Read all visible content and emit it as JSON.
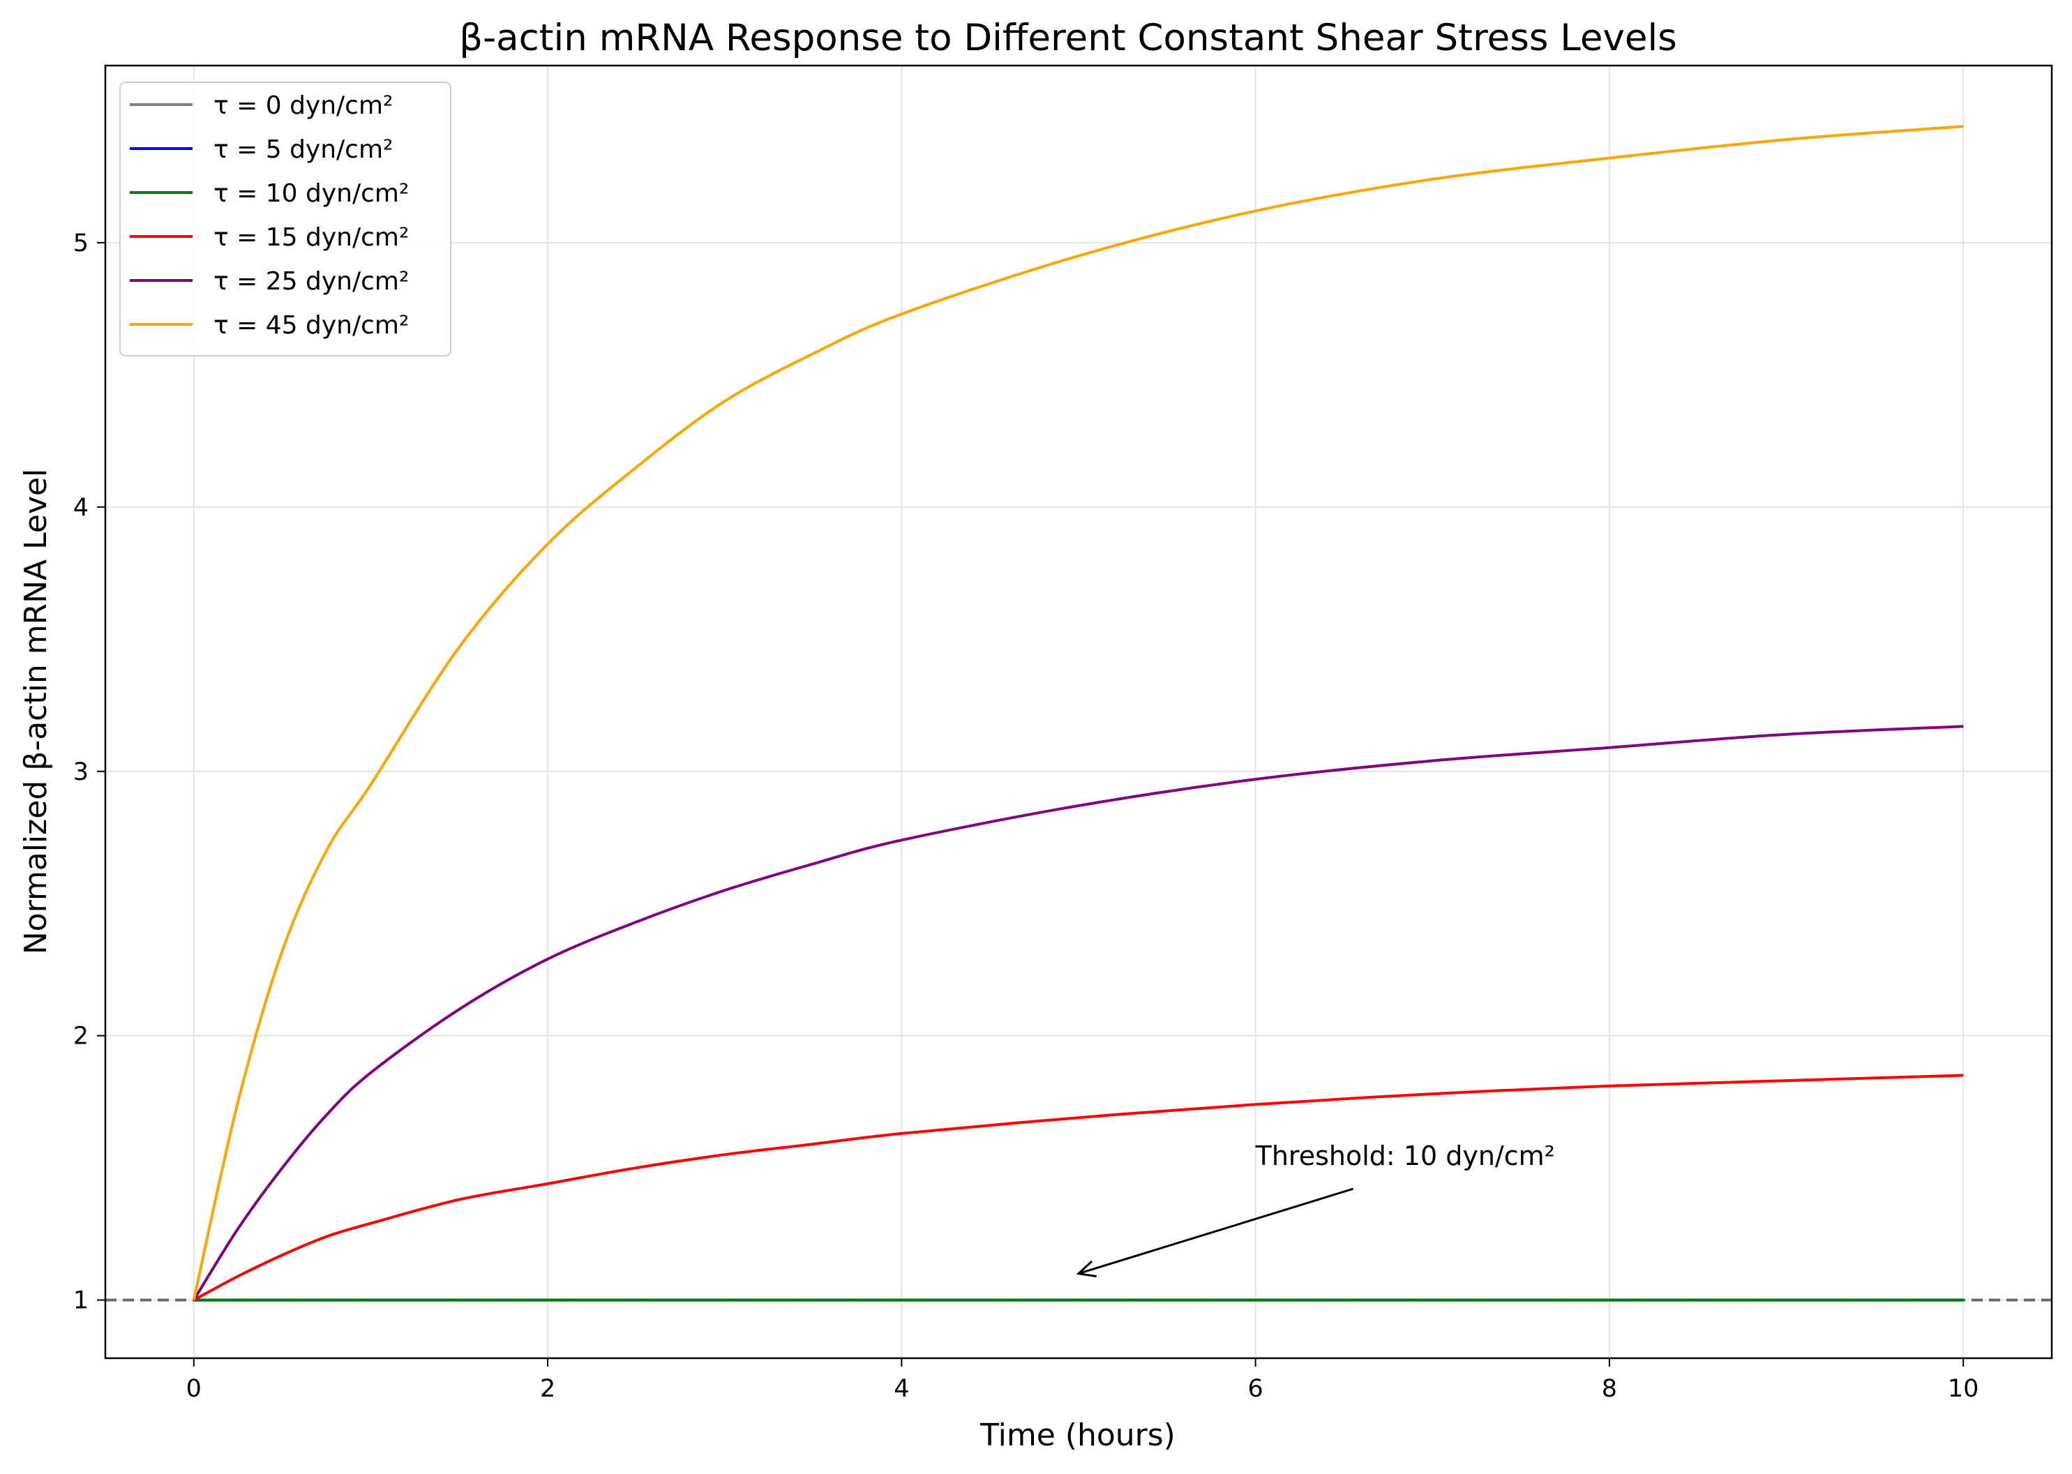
{
  "chart_data": {
    "type": "line",
    "title": "β-actin mRNA Response to Different Constant Shear Stress Levels",
    "xlabel": "Time (hours)",
    "ylabel": "Normalized β-actin mRNA Level",
    "xlim": [
      -0.5,
      10.5
    ],
    "ylim": [
      0.78,
      5.67
    ],
    "x_ticks": [
      0,
      2,
      4,
      6,
      8,
      10
    ],
    "y_ticks": [
      1,
      2,
      3,
      4,
      5
    ],
    "grid": true,
    "legend_position": "top-left",
    "x": [
      0,
      0.25,
      0.5,
      0.75,
      1,
      1.5,
      2,
      2.5,
      3,
      3.5,
      4,
      5,
      6,
      7,
      8,
      9,
      10
    ],
    "series": [
      {
        "name": "τ = 0 dyn/cm²",
        "color": "#808080",
        "values": [
          1,
          1,
          1,
          1,
          1,
          1,
          1,
          1,
          1,
          1,
          1,
          1,
          1,
          1,
          1,
          1,
          1
        ]
      },
      {
        "name": "τ = 5 dyn/cm²",
        "color": "#0000ff",
        "values": [
          1,
          1,
          1,
          1,
          1,
          1,
          1,
          1,
          1,
          1,
          1,
          1,
          1,
          1,
          1,
          1,
          1
        ]
      },
      {
        "name": "τ = 10 dyn/cm²",
        "color": "#008000",
        "values": [
          1,
          1,
          1,
          1,
          1,
          1,
          1,
          1,
          1,
          1,
          1,
          1,
          1,
          1,
          1,
          1,
          1
        ]
      },
      {
        "name": "τ = 15 dyn/cm²",
        "color": "#ff0000",
        "values": [
          1.0,
          1.09,
          1.17,
          1.24,
          1.29,
          1.38,
          1.44,
          1.5,
          1.55,
          1.59,
          1.63,
          1.69,
          1.74,
          1.78,
          1.81,
          1.83,
          1.85
        ]
      },
      {
        "name": "τ = 25 dyn/cm²",
        "color": "#800080",
        "values": [
          1.0,
          1.27,
          1.5,
          1.7,
          1.86,
          2.1,
          2.29,
          2.43,
          2.55,
          2.65,
          2.74,
          2.87,
          2.97,
          3.04,
          3.09,
          3.14,
          3.17
        ]
      },
      {
        "name": "τ = 45 dyn/cm²",
        "color": "#ffa500",
        "values": [
          1.0,
          1.75,
          2.32,
          2.7,
          2.95,
          3.47,
          3.86,
          4.15,
          4.4,
          4.58,
          4.73,
          4.95,
          5.12,
          5.24,
          5.32,
          5.39,
          5.44
        ]
      }
    ],
    "reference_line": {
      "y": 1,
      "color": "#555555",
      "style": "dashed"
    },
    "annotation": {
      "text": "Threshold: 10 dyn/cm²",
      "text_x": 6,
      "text_y": 1.5,
      "arrow_x": 5,
      "arrow_y": 1.1
    }
  }
}
